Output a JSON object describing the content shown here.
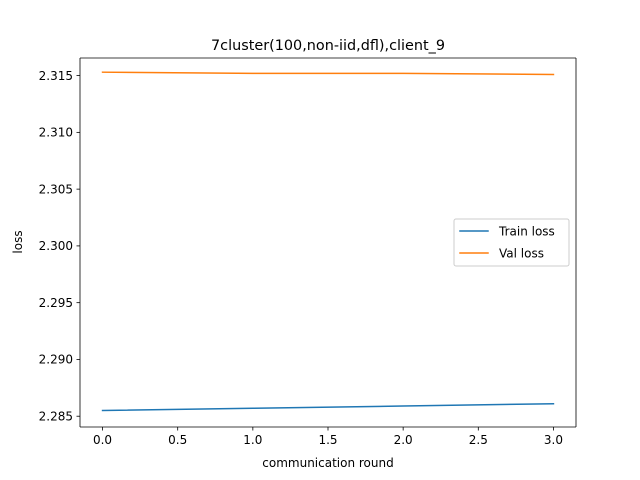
{
  "chart_data": {
    "type": "line",
    "title": "7cluster(100,non-iid,dfl),client_9",
    "xlabel": "communication round",
    "ylabel": "loss",
    "xlim": [
      -0.15,
      3.15
    ],
    "ylim": [
      2.28405,
      2.31655
    ],
    "grid": false,
    "legend_position": "center-right",
    "x_ticks": [
      0.0,
      0.5,
      1.0,
      1.5,
      2.0,
      2.5,
      3.0
    ],
    "x_tick_labels": [
      "0.0",
      "0.5",
      "1.0",
      "1.5",
      "2.0",
      "2.5",
      "3.0"
    ],
    "y_ticks": [
      2.285,
      2.29,
      2.295,
      2.3,
      2.305,
      2.31,
      2.315
    ],
    "y_tick_labels": [
      "2.285",
      "2.290",
      "2.295",
      "2.300",
      "2.305",
      "2.310",
      "2.315"
    ],
    "x": [
      0,
      1,
      2,
      3
    ],
    "series": [
      {
        "name": "Train loss",
        "color": "#1f77b4",
        "values": [
          2.2855,
          2.2857,
          2.2859,
          2.2861
        ]
      },
      {
        "name": "Val loss",
        "color": "#ff7f0e",
        "values": [
          2.3153,
          2.3152,
          2.3152,
          2.3151
        ]
      }
    ]
  }
}
